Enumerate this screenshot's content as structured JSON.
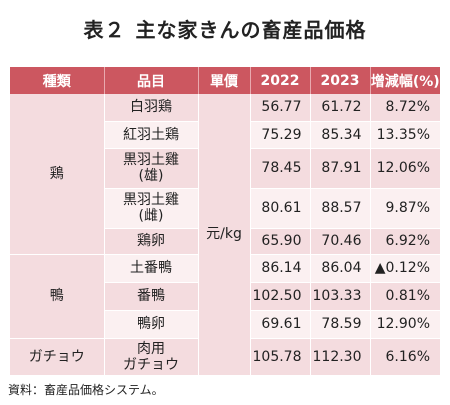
{
  "title": {
    "part1": "表２",
    "part2": "主な家きんの畜産品価格"
  },
  "headers": [
    "種類",
    "品目",
    "單價",
    "2022",
    "2023",
    "增減幅(%)"
  ],
  "unit": "元/kg",
  "groups": [
    {
      "category": "鶏",
      "rows": [
        {
          "item": "白羽鶏",
          "v2022": "56.77",
          "v2023": "61.72",
          "change": "8.72%"
        },
        {
          "item": "紅羽土鶏",
          "v2022": "75.29",
          "v2023": "85.34",
          "change": "13.35%"
        },
        {
          "item": "黒羽土雞",
          "item2": "(雄)",
          "v2022": "78.45",
          "v2023": "87.91",
          "change": "12.06%"
        },
        {
          "item": "黒羽土雞",
          "item2": "(雌)",
          "v2022": "80.61",
          "v2023": "88.57",
          "change": "9.87%"
        },
        {
          "item": "鶏卵",
          "v2022": "65.90",
          "v2023": "70.46",
          "change": "6.92%"
        }
      ]
    },
    {
      "category": "鴨",
      "rows": [
        {
          "item": "土番鴨",
          "v2022": "86.14",
          "v2023": "86.04",
          "change": "▲0.12%"
        },
        {
          "item": "番鴨",
          "v2022": "102.50",
          "v2023": "103.33",
          "change": "0.81%"
        },
        {
          "item": "鴨卵",
          "v2022": "69.61",
          "v2023": "78.59",
          "change": "12.90%"
        }
      ]
    },
    {
      "category": "ガチョウ",
      "rows": [
        {
          "item": "肉用",
          "item2": "ガチョウ",
          "v2022": "105.78",
          "v2023": "112.30",
          "change": "6.16%"
        }
      ]
    }
  ],
  "source": "資料：畜産品価格システム。"
}
